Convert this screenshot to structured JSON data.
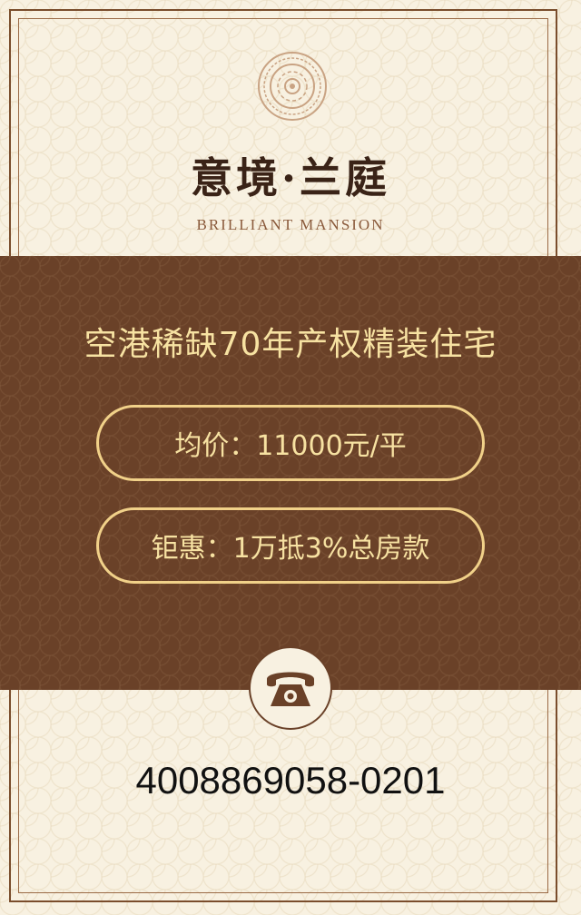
{
  "brand": {
    "title": "意境·兰庭",
    "subtitle": "BRILLIANT MANSION",
    "emblem_icon": "ornamental-medallion-icon"
  },
  "headline": "空港稀缺70年产权精装住宅",
  "price_pill": {
    "label": "均价：11000元/平"
  },
  "discount_pill": {
    "label": "钜惠：1万抵3%总房款"
  },
  "contact": {
    "phone_icon": "telephone-icon",
    "phone_number": "4008869058-0201"
  },
  "colors": {
    "background": "#f8f1e1",
    "band": "#6a4128",
    "accent_text": "#f7e2a2",
    "border_gold": "#f1d189",
    "title_text": "#3a2317"
  }
}
